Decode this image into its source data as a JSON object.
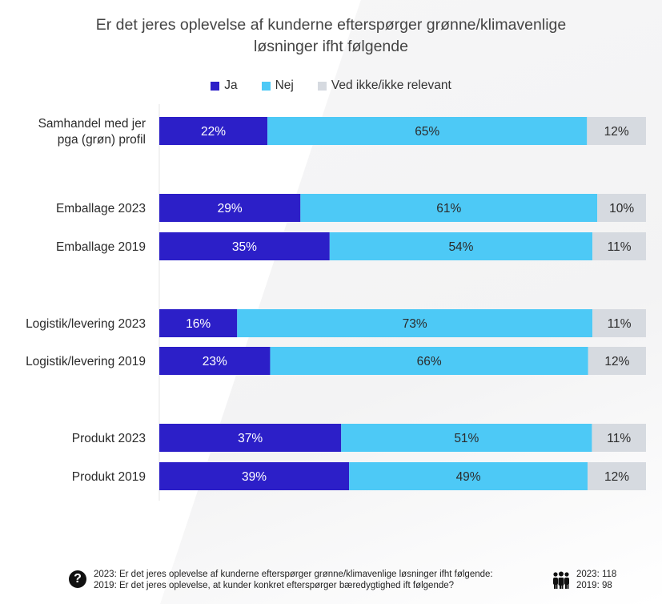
{
  "chart_data": {
    "type": "bar",
    "orientation": "horizontal",
    "stacked": true,
    "title": "Er det jeres oplevelse af kunderne efterspørger grønne/klimavenlige løsninger ifht følgende",
    "title_lines": [
      "Er det jeres oplevelse af kunderne efterspørger grønne/klimavenlige",
      "løsninger ifht følgende"
    ],
    "xlim": [
      0,
      100
    ],
    "legend_position": "top",
    "categories": [
      {
        "label_lines": [
          "Samhandel med jer",
          "pga (grøn) profil"
        ],
        "values": [
          22,
          65,
          12
        ]
      },
      {
        "label_lines": [
          "Emballage 2023"
        ],
        "values": [
          29,
          61,
          10
        ]
      },
      {
        "label_lines": [
          "Emballage 2019"
        ],
        "values": [
          35,
          54,
          11
        ]
      },
      {
        "label_lines": [
          "Logistik/levering 2023"
        ],
        "values": [
          16,
          73,
          11
        ]
      },
      {
        "label_lines": [
          "Logistik/levering 2019"
        ],
        "values": [
          23,
          66,
          12
        ]
      },
      {
        "label_lines": [
          "Produkt 2023"
        ],
        "values": [
          37,
          51,
          11
        ]
      },
      {
        "label_lines": [
          "Produkt 2019"
        ],
        "values": [
          39,
          49,
          12
        ]
      }
    ],
    "series": [
      {
        "name": "Ja",
        "color": "#2c1fc8",
        "label_color": "#ffffff"
      },
      {
        "name": "Nej",
        "color": "#4dc9f6",
        "label_color": "#2b2b2b"
      },
      {
        "name": "Ved ikke/ikke relevant",
        "color": "#d6dae0",
        "label_color": "#2b2b2b"
      }
    ]
  },
  "footer": {
    "question_icon": "question-circle-icon",
    "question_line1": "2023: Er det jeres oplevelse af kunderne efterspørger grønne/klimavenlige løsninger ifht følgende:",
    "question_line2": "2019: Er det jeres oplevelse, at kunder konkret efterspørger bæredygtighed ift følgende?",
    "respondents_icon": "people-icon",
    "n_2023": "2023: 118",
    "n_2019": "2019: 98"
  }
}
